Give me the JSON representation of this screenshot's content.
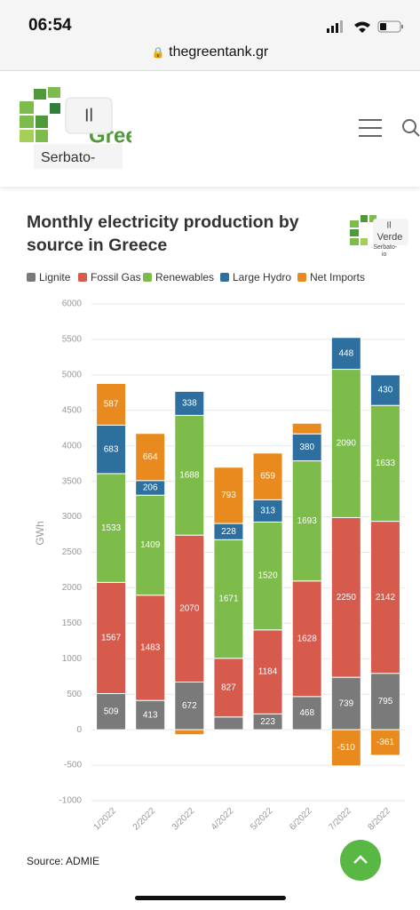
{
  "status_bar": {
    "time": "06:54"
  },
  "browser": {
    "url": "thegreentank.gr"
  },
  "header": {
    "logo_badge": "Il",
    "logo_text": "Green",
    "logo_caption": "Serbato-"
  },
  "chart_logo": {
    "badge": "Il",
    "word": "Verde",
    "caption": "·Serbato-",
    "caption2": "io"
  },
  "chart_data": {
    "type": "stacked-bar",
    "title": "Monthly electricity production by source in Greece",
    "y_label": "GWh",
    "categories": [
      "1/2022",
      "2/2022",
      "3/2022",
      "4/2022",
      "5/2022",
      "6/2022",
      "7/2022",
      "8/2022"
    ],
    "series": [
      {
        "name": "Lignite",
        "color": "#7a7a7a",
        "values": [
          509,
          413,
          672,
          180,
          223,
          468,
          739,
          795
        ]
      },
      {
        "name": "Fossil Gas",
        "color": "#d65b4d",
        "values": [
          1567,
          1483,
          2070,
          827,
          1184,
          1628,
          2250,
          2142
        ]
      },
      {
        "name": "Renewables",
        "color": "#7dbb4b",
        "values": [
          1533,
          1409,
          1688,
          1671,
          1520,
          1693,
          2090,
          1633
        ]
      },
      {
        "name": "Large Hydro",
        "color": "#2d6f9f",
        "values": [
          683,
          206,
          338,
          228,
          313,
          380,
          448,
          430
        ]
      },
      {
        "name": "Net Imports",
        "color": "#e98a1f",
        "values": [
          587,
          664,
          -70,
          793,
          659,
          150,
          -510,
          -361
        ]
      }
    ],
    "ylim": [
      -1000,
      6000
    ],
    "yticks": [
      -1000,
      -500,
      0,
      500,
      1000,
      1500,
      2000,
      2500,
      3000,
      3500,
      4000,
      4500,
      5000,
      5500,
      6000
    ],
    "grid": true,
    "source": "Source: ADMIE"
  }
}
